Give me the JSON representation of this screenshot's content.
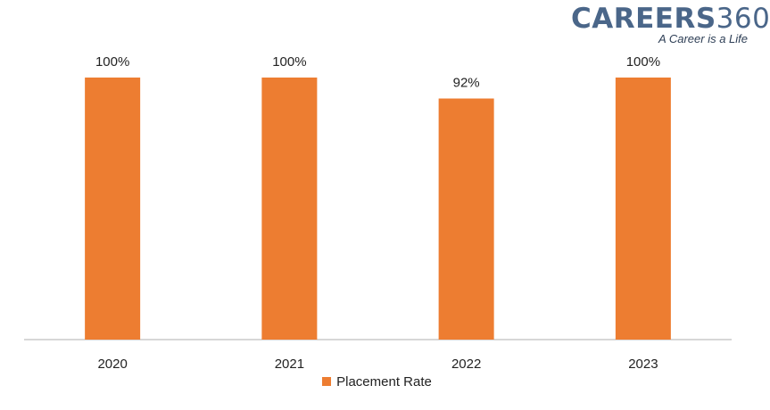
{
  "logo": {
    "brand": "CAREERS",
    "number": "360",
    "tagline": "A Career is a Life"
  },
  "colors": {
    "bar": "#ed7d31",
    "axis": "#bfbfbf",
    "text": "#222222"
  },
  "chart_data": {
    "type": "bar",
    "categories": [
      "2020",
      "2021",
      "2022",
      "2023"
    ],
    "series": [
      {
        "name": "Placement Rate",
        "values": [
          100,
          100,
          92,
          100
        ]
      }
    ],
    "data_labels": [
      "100%",
      "100%",
      "92%",
      "100%"
    ],
    "ylim": [
      0,
      100
    ],
    "grid": false,
    "legend": "bottom"
  }
}
